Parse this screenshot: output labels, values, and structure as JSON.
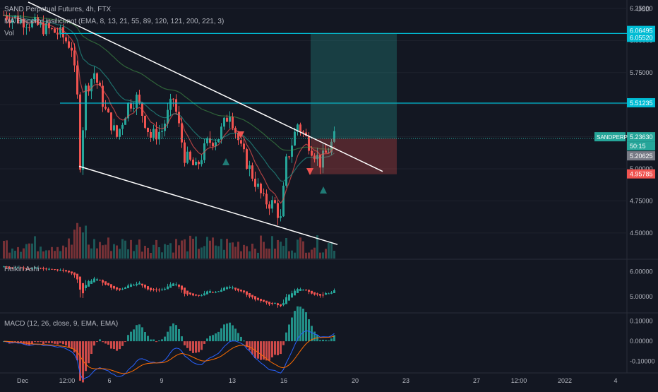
{
  "header": {
    "symbol": "SAND Perpetual Futures, 4h, FTX",
    "ma_indicator": "MA Emperor insiliconot (EMA, 8, 13, 21, 55, 89, 120, 121, 200, 221, 3)",
    "vol_label": "Vol",
    "currency": "USD"
  },
  "panes": {
    "heikin_label": "Heikin Ashi",
    "macd_label": "MACD (12, 26, close, 9, EMA, EMA)"
  },
  "colors": {
    "background": "#131722",
    "up": "#26a69a",
    "down": "#ef5350",
    "cyan_line": "#00bcd4",
    "trend_line": "#ffffff",
    "macd_line": "#2962ff",
    "signal_line": "#ff6d00"
  },
  "chart_data": {
    "type": "candlestick",
    "price_axis": {
      "ylim": [
        4.4,
        6.25
      ],
      "ticks": [
        "6.25000",
        "6.00000",
        "5.75000",
        "5.50000",
        "5.25000",
        "5.00000",
        "4.75000",
        "4.50000"
      ]
    },
    "time_axis": {
      "labels": [
        "Dec",
        "12:00",
        "6",
        "9",
        "13",
        "16",
        "20",
        "23",
        "27",
        "12:00",
        "2022",
        "4"
      ]
    },
    "horizontal_levels": [
      6.0552,
      5.51235
    ],
    "price_labels": [
      {
        "text": "6.06495",
        "price": 6.06495,
        "color": "#00bcd4"
      },
      {
        "text": "6.05520",
        "price": 6.0552,
        "color": "#00bcd4"
      },
      {
        "text": "5.51235",
        "price": 5.51235,
        "color": "#00bcd4"
      },
      {
        "text": "5.23630",
        "price": 5.2363,
        "color": "#26a69a"
      },
      {
        "text": "50:15",
        "price": 5.175,
        "color": "#26a69a"
      },
      {
        "text": "5.20625",
        "price": 5.20625,
        "color": "#787b86"
      },
      {
        "text": "4.95785",
        "price": 4.95785,
        "color": "#ef5350"
      }
    ],
    "ticker_tag": "SANDPERP",
    "position": {
      "entry": 5.2363,
      "target": 6.0552,
      "stop": 4.95785
    },
    "heikin_ticks": [
      "6.00000",
      "5.00000"
    ],
    "macd_ticks": [
      "0.10000",
      "0.00000",
      "-0.10000"
    ]
  }
}
